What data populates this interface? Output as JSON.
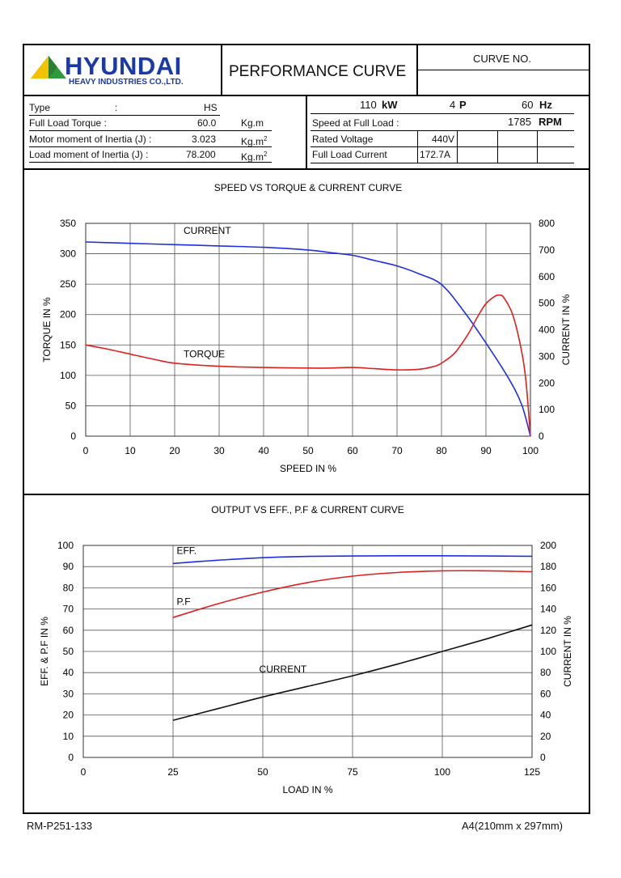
{
  "header": {
    "logo_name": "HYUNDAI",
    "logo_sub": "HEAVY INDUSTRIES CO.,LTD.",
    "title": "PERFORMANCE CURVE",
    "curve_no_label": "CURVE NO.",
    "curve_no_value": ""
  },
  "specs_left": {
    "type_label": "Type",
    "type_colon": ":",
    "type_value": "HS",
    "torque_label": "Full Load Torque :",
    "torque_value": "60.0",
    "torque_unit": "Kg.m",
    "motor_inertia_label": "Motor moment of Inertia (J) :",
    "motor_inertia_value": "3.023",
    "motor_inertia_unit": "Kg.m",
    "load_inertia_label": "Load moment of Inertia (J) :",
    "load_inertia_value": "78.200",
    "load_inertia_unit": "Kg.m",
    "sup2": "2"
  },
  "specs_right": {
    "kw_value": "110",
    "kw_unit": "kW",
    "pole_value": "4",
    "pole_unit": "P",
    "hz_value": "60",
    "hz_unit": "Hz",
    "speed_label": "Speed at Full Load :",
    "speed_value": "1785",
    "speed_unit": "RPM",
    "voltage_label": "Rated Voltage",
    "voltage_value": "440V",
    "current_label": "Full Load Current",
    "current_value": "172.7A"
  },
  "chart_data": [
    {
      "type": "line",
      "title": "SPEED VS TORQUE & CURRENT CURVE",
      "xlabel": "SPEED IN %",
      "ylabel": "TORQUE IN %",
      "y2label": "CURRENT IN %",
      "xlim": [
        0,
        100
      ],
      "ylim": [
        0,
        350
      ],
      "y2lim": [
        0,
        800
      ],
      "xticks": [
        0,
        10,
        20,
        30,
        40,
        50,
        60,
        70,
        80,
        90,
        100
      ],
      "yticks": [
        0,
        50,
        100,
        150,
        200,
        250,
        300,
        350
      ],
      "y2ticks": [
        0,
        100,
        200,
        300,
        400,
        500,
        600,
        700,
        800
      ],
      "grid": true,
      "series": [
        {
          "name": "CURRENT",
          "axis": "y2",
          "color": "#1f2fe0",
          "x": [
            0,
            10,
            20,
            30,
            40,
            50,
            55,
            60,
            65,
            70,
            75,
            80,
            85,
            90,
            95,
            98,
            100
          ],
          "y": [
            730,
            725,
            720,
            715,
            710,
            700,
            690,
            680,
            660,
            640,
            610,
            570,
            470,
            350,
            220,
            120,
            0
          ]
        },
        {
          "name": "TORQUE",
          "axis": "y",
          "color": "#e01f1f",
          "x": [
            0,
            5,
            10,
            15,
            20,
            30,
            40,
            50,
            55,
            60,
            65,
            70,
            75,
            78,
            80,
            83,
            86,
            88,
            90,
            92,
            93,
            94,
            96,
            98,
            99,
            100
          ],
          "y": [
            150,
            143,
            135,
            127,
            120,
            115,
            113,
            112,
            112,
            113,
            111,
            109,
            110,
            114,
            120,
            137,
            168,
            195,
            218,
            230,
            232,
            228,
            200,
            140,
            90,
            0
          ]
        }
      ],
      "annotations": [
        "CURRENT",
        "TORQUE"
      ]
    },
    {
      "type": "line",
      "title": "OUTPUT VS EFF., P.F & CURRENT CURVE",
      "xlabel": "LOAD IN %",
      "ylabel": "EFF. & P.F IN %",
      "y2label": "CURRENT IN %",
      "xlim": [
        0,
        125
      ],
      "ylim": [
        0,
        100
      ],
      "y2lim": [
        0,
        200
      ],
      "xticks": [
        0,
        25,
        50,
        75,
        100,
        125
      ],
      "yticks": [
        0,
        10,
        20,
        30,
        40,
        50,
        60,
        70,
        80,
        90,
        100
      ],
      "y2ticks": [
        0,
        20,
        40,
        60,
        80,
        100,
        120,
        140,
        160,
        180,
        200
      ],
      "grid": true,
      "series": [
        {
          "name": "EFF.",
          "axis": "y",
          "color": "#1f2fe0",
          "x": [
            25,
            37.5,
            50,
            62.5,
            75,
            87.5,
            100,
            112.5,
            125
          ],
          "y": [
            91.5,
            93.0,
            94.2,
            94.8,
            95.0,
            95.1,
            95.1,
            95.0,
            94.9
          ]
        },
        {
          "name": "P.F",
          "axis": "y",
          "color": "#e01f1f",
          "x": [
            25,
            37.5,
            50,
            62.5,
            75,
            87.5,
            100,
            112.5,
            125
          ],
          "y": [
            66.0,
            72.5,
            78.0,
            82.5,
            85.5,
            87.2,
            88.0,
            88.0,
            87.6
          ]
        },
        {
          "name": "CURRENT",
          "axis": "y2",
          "color": "#111111",
          "x": [
            25,
            37.5,
            50,
            62.5,
            75,
            87.5,
            100,
            112.5,
            125
          ],
          "y": [
            35,
            46,
            57,
            67,
            77,
            88,
            100,
            112,
            125
          ]
        }
      ],
      "annotations": [
        "EFF.",
        "P.F",
        "CURRENT"
      ]
    }
  ],
  "footer": {
    "left": "RM-P251-133",
    "right": "A4(210mm x 297mm)"
  }
}
